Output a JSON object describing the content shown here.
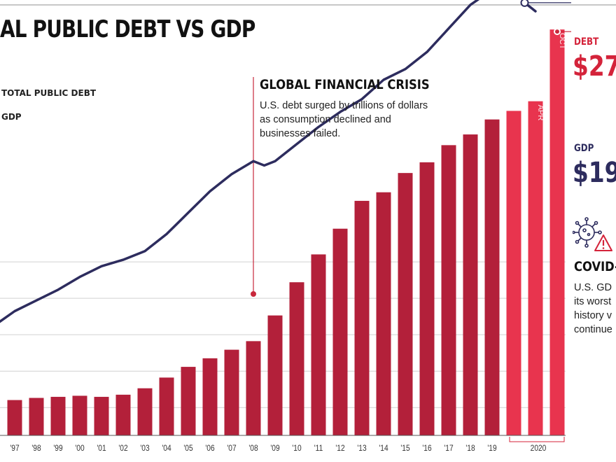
{
  "title": "AL PUBLIC DEBT VS GDP",
  "legend": {
    "debt": "TOTAL PUBLIC DEBT",
    "gdp": "GDP"
  },
  "colors": {
    "debt_bar": "#b3203a",
    "debt_bar_recent": "#e8344e",
    "gdp_line": "#2d2c5e",
    "grid": "#d0d0d0",
    "annotation": "#c8283c"
  },
  "annotations": {
    "gfc": {
      "title": "GLOBAL FINANCIAL CRISIS",
      "body": "U.S. debt surged by trillions of dollars as consumption declined and businesses failed."
    },
    "debt": {
      "label": "DEBT",
      "value": "$27."
    },
    "gdp": {
      "label": "GDP",
      "value": "$19."
    },
    "covid": {
      "title": "COVID-",
      "lines": [
        "U.S. GD",
        "its worst",
        "history v",
        "continue"
      ],
      "icon": "virus-warning-icon"
    }
  },
  "chart_data": {
    "type": "bar",
    "y_gridlines": [
      0.81,
      0.64,
      0.47,
      0.3,
      0.13
    ],
    "categories": [
      "'97",
      "'98",
      "'99",
      "'00",
      "'01",
      "'02",
      "'03",
      "'04",
      "'05",
      "'06",
      "'07",
      "'08",
      "'09",
      "'10",
      "'11",
      "'12",
      "'13",
      "'14",
      "'15",
      "'16",
      "'17",
      "'18",
      "'19",
      "",
      "APR",
      "OCT"
    ],
    "x_tick_labels": [
      "'97",
      "'98",
      "'99",
      "'00",
      "'01",
      "'02",
      "'03",
      "'04",
      "'05",
      "'06",
      "'07",
      "'08",
      "'09",
      "'10",
      "'11",
      "'12",
      "'13",
      "'14",
      "'15",
      "'16",
      "'17",
      "'18",
      "'19",
      "2020"
    ],
    "bar_labels": {
      "APR": "APR",
      "OCT": "OCT"
    },
    "series": [
      {
        "name": "TOTAL PUBLIC DEBT",
        "type": "bar",
        "values": [
          0.165,
          0.175,
          0.18,
          0.185,
          0.18,
          0.19,
          0.22,
          0.27,
          0.32,
          0.36,
          0.4,
          0.44,
          0.56,
          0.715,
          0.845,
          0.965,
          1.095,
          1.135,
          1.225,
          1.275,
          1.355,
          1.405,
          1.475,
          1.515,
          1.56,
          1.895
        ],
        "recent_from_index": 23
      },
      {
        "name": "GDP",
        "type": "line",
        "x": [
          -0.7,
          0,
          1,
          2,
          3,
          4,
          5,
          6,
          7,
          8,
          9,
          10,
          11,
          11.5,
          12,
          13,
          14,
          15,
          16,
          17,
          18,
          19,
          20,
          21,
          22,
          22.5,
          23,
          23.5,
          24
        ],
        "values": [
          0.53,
          0.58,
          0.63,
          0.68,
          0.74,
          0.79,
          0.82,
          0.86,
          0.94,
          1.04,
          1.14,
          1.22,
          1.28,
          1.26,
          1.28,
          1.36,
          1.44,
          1.51,
          1.57,
          1.66,
          1.71,
          1.79,
          1.9,
          2.01,
          2.08,
          2.1,
          2.12,
          2.02,
          1.98
        ]
      }
    ],
    "markers": {
      "gfc_index": 11,
      "debt_end_index": 25,
      "gdp_end_x": 23.5
    }
  }
}
